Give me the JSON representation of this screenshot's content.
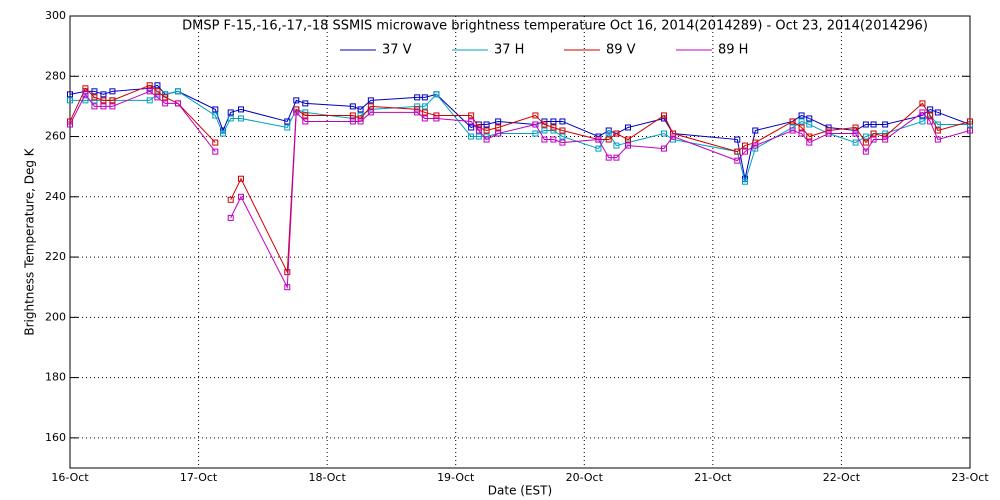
{
  "chart_data": {
    "type": "line",
    "title": "DMSP F-15,-16,-17,-18 SSMIS microwave brightness temperature Oct 16, 2014(2014289) - Oct 23, 2014(2014296)",
    "x_label": "Date (EST)",
    "y_label": "Brightness Temperature, Deg K",
    "x": [
      16.0,
      16.12,
      16.19,
      16.26,
      16.33,
      16.62,
      16.68,
      16.74,
      16.84,
      17.13,
      17.19,
      17.25,
      17.33,
      17.69,
      17.76,
      17.83,
      18.2,
      18.26,
      18.34,
      18.7,
      18.76,
      18.85,
      19.12,
      19.18,
      19.24,
      19.33,
      19.62,
      19.69,
      19.76,
      19.83,
      20.11,
      20.19,
      20.25,
      20.34,
      20.62,
      20.69,
      21.19,
      21.25,
      21.33,
      21.62,
      21.69,
      21.75,
      21.9,
      22.11,
      22.19,
      22.25,
      22.34,
      22.63,
      22.69,
      22.75,
      23.0
    ],
    "series": [
      {
        "name": "37 V",
        "color": "#0000c0",
        "values": [
          274,
          275,
          275,
          274,
          275,
          276,
          277,
          274,
          275,
          269,
          262,
          268,
          269,
          265,
          272,
          271,
          270,
          269,
          272,
          273,
          273,
          274,
          263,
          264,
          264,
          265,
          264,
          265,
          265,
          265,
          260,
          262,
          261,
          263,
          266,
          261,
          259,
          246,
          262,
          265,
          267,
          266,
          263,
          262,
          264,
          264,
          264,
          267,
          269,
          268,
          264
        ]
      },
      {
        "name": "37 H",
        "color": "#00a0c0",
        "values": [
          272,
          272,
          272,
          272,
          272,
          272,
          274,
          274,
          275,
          267,
          261,
          266,
          266,
          263,
          269,
          268,
          266,
          267,
          269,
          270,
          270,
          274,
          260,
          260,
          260,
          261,
          261,
          262,
          262,
          260,
          256,
          261,
          257,
          258,
          261,
          259,
          255,
          245,
          256,
          263,
          265,
          264,
          261,
          258,
          260,
          261,
          261,
          265,
          267,
          264,
          264
        ]
      },
      {
        "name": "89 V",
        "color": "#d00000",
        "values": [
          265,
          276,
          273,
          272,
          272,
          277,
          275,
          273,
          271,
          258,
          null,
          239,
          246,
          215,
          269,
          267,
          267,
          266,
          270,
          269,
          268,
          267,
          267,
          263,
          262,
          263,
          267,
          264,
          263,
          262,
          259,
          259,
          261,
          259,
          267,
          261,
          255,
          257,
          258,
          265,
          263,
          260,
          262,
          263,
          258,
          261,
          260,
          271,
          267,
          262,
          265
        ]
      },
      {
        "name": "89 H",
        "color": "#c000c0",
        "values": [
          264,
          274,
          270,
          270,
          270,
          275,
          273,
          271,
          271,
          255,
          null,
          233,
          240,
          210,
          268,
          265,
          265,
          265,
          268,
          268,
          266,
          266,
          265,
          262,
          259,
          261,
          264,
          259,
          259,
          258,
          259,
          253,
          253,
          257,
          256,
          260,
          252,
          255,
          257,
          262,
          261,
          258,
          261,
          261,
          255,
          259,
          259,
          268,
          265,
          259,
          262
        ]
      }
    ],
    "xlim": [
      16,
      23
    ],
    "xticks": [
      {
        "value": 16,
        "label": "16-Oct"
      },
      {
        "value": 17,
        "label": "17-Oct"
      },
      {
        "value": 18,
        "label": "18-Oct"
      },
      {
        "value": 19,
        "label": "19-Oct"
      },
      {
        "value": 20,
        "label": "20-Oct"
      },
      {
        "value": 21,
        "label": "21-Oct"
      },
      {
        "value": 22,
        "label": "22-Oct"
      },
      {
        "value": 23,
        "label": "23-Oct"
      }
    ],
    "ylim": [
      150,
      300
    ],
    "yticks": [
      160,
      180,
      200,
      220,
      240,
      260,
      280,
      300
    ],
    "grid": true
  }
}
